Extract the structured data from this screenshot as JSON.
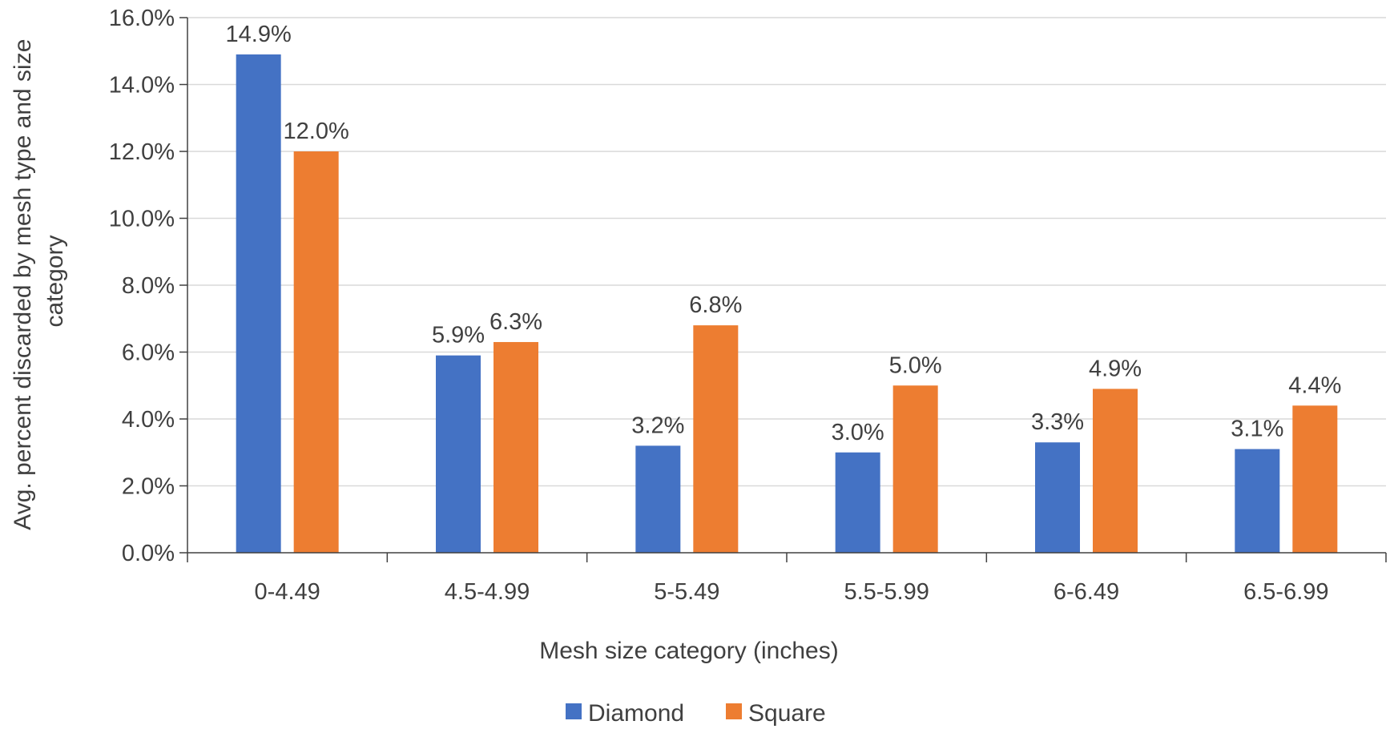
{
  "chart_data": {
    "type": "bar",
    "title": "",
    "xlabel": "Mesh size category (inches)",
    "ylabel_lines": [
      "Avg. percent discarded by mesh type and size",
      "category"
    ],
    "categories": [
      "0-4.49",
      "4.5-4.99",
      "5-5.49",
      "5.5-5.99",
      "6-6.49",
      "6.5-6.99"
    ],
    "series": [
      {
        "name": "Diamond",
        "color": "#4472C4",
        "values": [
          14.9,
          5.9,
          3.2,
          3.0,
          3.3,
          3.1
        ],
        "labels": [
          "14.9%",
          "5.9%",
          "3.2%",
          "3.0%",
          "3.3%",
          "3.1%"
        ]
      },
      {
        "name": "Square",
        "color": "#ED7D31",
        "values": [
          12.0,
          6.3,
          6.8,
          5.0,
          4.9,
          4.4
        ],
        "labels": [
          "12.0%",
          "6.3%",
          "6.8%",
          "5.0%",
          "4.9%",
          "4.4%"
        ]
      }
    ],
    "ylim": [
      0,
      16
    ],
    "yticks": [
      0,
      2,
      4,
      6,
      8,
      10,
      12,
      14,
      16
    ],
    "ytick_labels": [
      "0.0%",
      "2.0%",
      "4.0%",
      "6.0%",
      "8.0%",
      "10.0%",
      "12.0%",
      "14.0%",
      "16.0%"
    ],
    "grid": true,
    "legend_position": "bottom-center"
  }
}
